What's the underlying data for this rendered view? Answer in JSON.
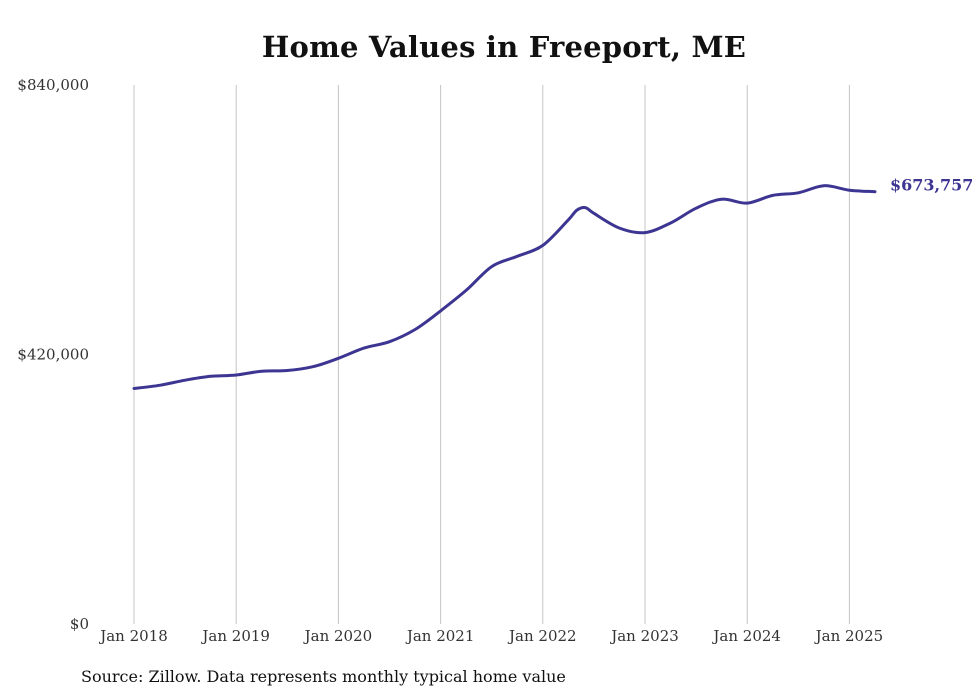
{
  "chart_data": {
    "type": "line",
    "title": "Home Values in Freeport, ME",
    "source": "Source: Zillow. Data represents monthly typical home value",
    "xlabel": "",
    "ylabel": "",
    "x_ticks": [
      "Jan 2018",
      "Jan 2019",
      "Jan 2020",
      "Jan 2021",
      "Jan 2022",
      "Jan 2023",
      "Jan 2024",
      "Jan 2025"
    ],
    "y_ticks": [
      "$0",
      "$420,000",
      "$840,000"
    ],
    "ylim": [
      0,
      840000
    ],
    "xlim": [
      "2018-01",
      "2025-04"
    ],
    "grid": "vertical lines at each January",
    "line_color": "#3d3592",
    "end_label": "$673,757",
    "series": [
      {
        "name": "",
        "x": [
          "2018-01",
          "2018-04",
          "2018-07",
          "2018-10",
          "2019-01",
          "2019-04",
          "2019-07",
          "2019-10",
          "2020-01",
          "2020-04",
          "2020-07",
          "2020-10",
          "2021-01",
          "2021-04",
          "2021-07",
          "2021-10",
          "2022-01",
          "2022-04",
          "2022-05",
          "2022-06",
          "2022-07",
          "2022-10",
          "2023-01",
          "2023-04",
          "2023-07",
          "2023-10",
          "2024-01",
          "2024-04",
          "2024-07",
          "2024-10",
          "2025-01",
          "2025-04"
        ],
        "values": [
          367000,
          372000,
          380000,
          386000,
          388000,
          394000,
          395000,
          401000,
          414000,
          430000,
          440000,
          459000,
          488000,
          520000,
          557000,
          573000,
          590000,
          630000,
          645000,
          649000,
          640000,
          617000,
          610000,
          625000,
          648000,
          662000,
          656000,
          668000,
          672000,
          683000,
          676000,
          673757
        ]
      }
    ]
  }
}
